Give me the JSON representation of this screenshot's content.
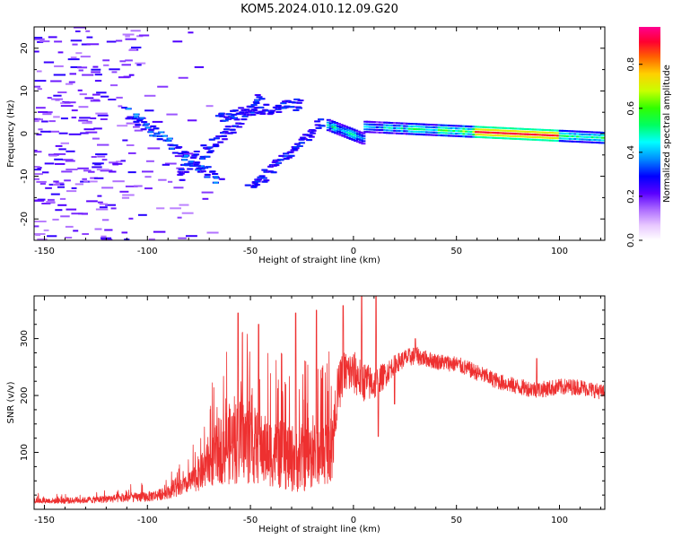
{
  "title": "KOM5.2024.010.12.09.G20",
  "chart_data": [
    {
      "type": "heatmap",
      "xlabel": "Height of straight line (km)",
      "ylabel": "Frequency (Hz)",
      "xlim": [
        -155,
        122
      ],
      "ylim": [
        -25,
        25
      ],
      "xticks": [
        -150,
        -100,
        -50,
        0,
        50,
        100
      ],
      "yticks": [
        -20,
        -10,
        0,
        10,
        20
      ],
      "colorbar": {
        "label": "Normalized spectral amplitude",
        "range": [
          0.0,
          0.97
        ],
        "ticks": [
          "0.0",
          "0.2",
          "0.4",
          "0.6",
          "0.8"
        ],
        "colormap": "gist_rainbow_r (white below ~0.15)"
      },
      "features": [
        {
          "name": "satellite-line",
          "x": [
            -12,
            122
          ],
          "freq_hz": [
            2,
            -1
          ],
          "amplitude": [
            0.3,
            0.9
          ]
        },
        {
          "name": "drift-track-1",
          "x": [
            -110,
            -65
          ],
          "freq_hz": [
            5,
            -11
          ],
          "amplitude": [
            0.25,
            0.4
          ]
        },
        {
          "name": "drift-track-2",
          "x": [
            -85,
            -45
          ],
          "freq_hz": [
            -10,
            8
          ],
          "amplitude": [
            0.25,
            0.35
          ]
        },
        {
          "name": "drift-track-3",
          "x": [
            -65,
            -25
          ],
          "freq_hz": [
            4,
            7
          ],
          "amplitude": [
            0.25,
            0.35
          ]
        },
        {
          "name": "drift-track-4",
          "x": [
            -50,
            -15
          ],
          "freq_hz": [
            -13,
            3
          ],
          "amplitude": [
            0.25,
            0.35
          ]
        },
        {
          "name": "noise-floor",
          "x": [
            -155,
            -30
          ],
          "freq_hz": [
            -25,
            25
          ],
          "amplitude": [
            0.05,
            0.2
          ]
        }
      ]
    },
    {
      "type": "line",
      "xlabel": "Height of straight line (km)",
      "ylabel": "SNR (v/v)",
      "xlim": [
        -155,
        122
      ],
      "ylim": [
        0,
        375
      ],
      "xticks": [
        -150,
        -100,
        -50,
        0,
        50,
        100
      ],
      "yticks": [
        100,
        200,
        300
      ],
      "series": [
        {
          "color": "#ee3030",
          "x": [
            -155,
            -140,
            -130,
            -120,
            -110,
            -100,
            -95,
            -90,
            -85,
            -80,
            -75,
            -70,
            -65,
            -60,
            -55,
            -50,
            -45,
            -40,
            -35,
            -30,
            -25,
            -20,
            -15,
            -10,
            -8,
            -5,
            0,
            5,
            10,
            15,
            20,
            25,
            30,
            35,
            40,
            50,
            60,
            70,
            80,
            90,
            100,
            110,
            122
          ],
          "baseline": [
            15,
            15,
            16,
            18,
            20,
            22,
            25,
            30,
            35,
            45,
            60,
            80,
            105,
            115,
            120,
            115,
            105,
            100,
            95,
            90,
            90,
            95,
            100,
            110,
            200,
            240,
            240,
            225,
            220,
            235,
            255,
            265,
            270,
            265,
            260,
            255,
            240,
            225,
            215,
            210,
            215,
            215,
            205
          ],
          "spread": [
            8,
            9,
            10,
            12,
            14,
            16,
            18,
            20,
            25,
            30,
            50,
            80,
            110,
            130,
            140,
            130,
            120,
            110,
            110,
            110,
            110,
            110,
            110,
            110,
            70,
            60,
            60,
            55,
            45,
            35,
            25,
            25,
            25,
            22,
            22,
            22,
            22,
            22,
            22,
            22,
            22,
            22,
            20
          ],
          "peaks": [
            {
              "x": -56,
              "y": 345
            },
            {
              "x": -46,
              "y": 325
            },
            {
              "x": -28,
              "y": 345
            },
            {
              "x": -18,
              "y": 350
            },
            {
              "x": -5,
              "y": 358
            },
            {
              "x": 4,
              "y": 375
            },
            {
              "x": 11,
              "y": 380
            },
            {
              "x": 30,
              "y": 300
            },
            {
              "x": 89,
              "y": 265
            }
          ],
          "dips": [
            {
              "x": 12,
              "y": 128
            },
            {
              "x": 20,
              "y": 185
            }
          ]
        }
      ]
    }
  ]
}
